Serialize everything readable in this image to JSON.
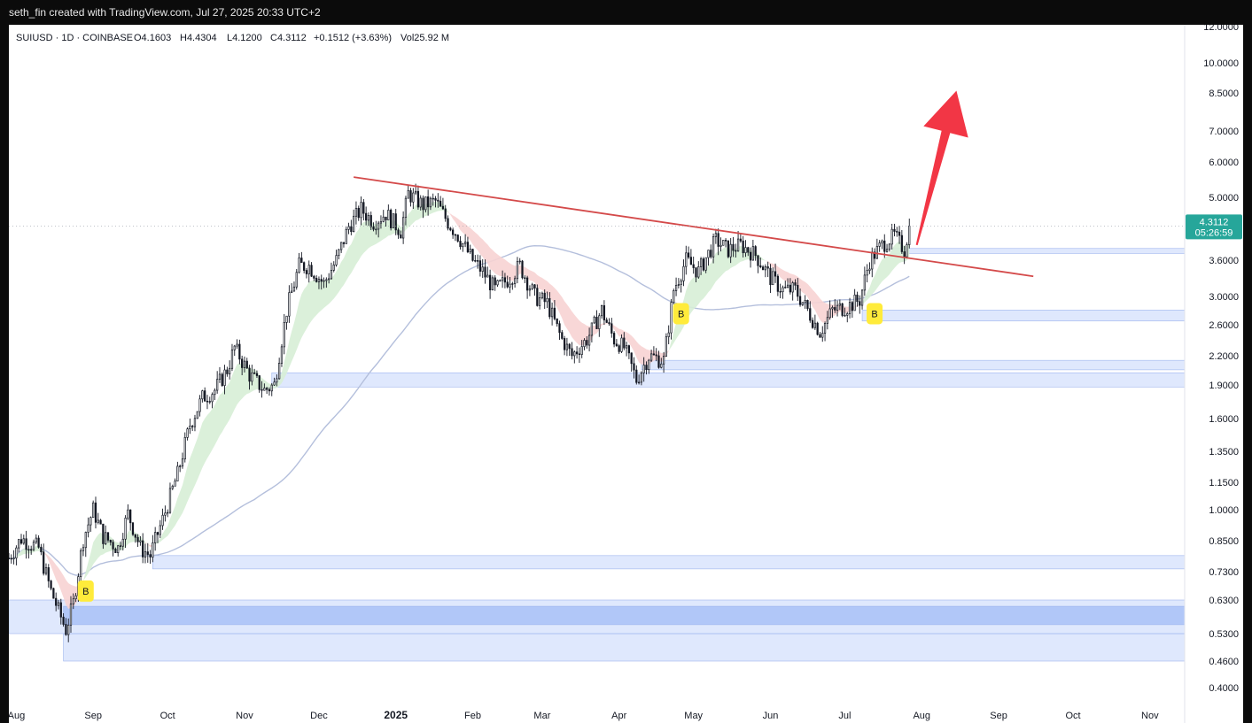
{
  "header": {
    "attribution": "seth_fin created with TradingView.com, Jul 27, 2025 20:33 UTC+2"
  },
  "legend": {
    "symbol": "SUIUSD · 1D · COINBASE",
    "open": "O4.1603",
    "high": "H4.4304",
    "low": "L4.1200",
    "close": "C4.3112",
    "change": "+0.1512 (+3.63%)",
    "volume": "Vol25.92 M"
  },
  "last_price": {
    "value": "4.3112",
    "countdown": "05:26:59"
  },
  "colors": {
    "accent_last": "#26a69a",
    "trendline": "#d44a4a",
    "arrow": "#f23645",
    "zone": "#c9d9fb",
    "zone_strong": "#a9c1f7",
    "cloud_up": "#d7eed6",
    "cloud_down": "#f7d3d3",
    "ma_line": "#b4bfdc",
    "badge": "#ffeb3b"
  },
  "chart_data": {
    "type": "candlestick",
    "symbol": "SUIUSD",
    "interval": "1D",
    "exchange": "COINBASE",
    "y_scale": "log",
    "ylim": [
      0.4,
      12.0
    ],
    "x_range": [
      "2024-07-29",
      "2025-11-15"
    ],
    "y_ticks": [
      12.0,
      10.0,
      8.5,
      7.0,
      6.0,
      5.0,
      4.3,
      3.6,
      3.0,
      2.6,
      2.2,
      1.9,
      1.6,
      1.35,
      1.15,
      1.0,
      0.85,
      0.73,
      0.63,
      0.53,
      0.46,
      0.4
    ],
    "y_tick_labels": [
      "12.0000",
      "10.0000",
      "8.5000",
      "7.0000",
      "6.0000",
      "5.0000",
      "4.3000",
      "3.6000",
      "3.0000",
      "2.6000",
      "2.2000",
      "1.9000",
      "1.6000",
      "1.3500",
      "1.1500",
      "1.0000",
      "0.8500",
      "0.7300",
      "0.6300",
      "0.5300",
      "0.4600",
      "0.4000"
    ],
    "x_ticks": [
      {
        "label": "Aug",
        "date": "2024-08-01"
      },
      {
        "label": "Sep",
        "date": "2024-09-01"
      },
      {
        "label": "Oct",
        "date": "2024-10-01"
      },
      {
        "label": "Nov",
        "date": "2024-11-01"
      },
      {
        "label": "Dec",
        "date": "2024-12-01"
      },
      {
        "label": "2025",
        "date": "2025-01-01",
        "bold": true
      },
      {
        "label": "Feb",
        "date": "2025-02-01"
      },
      {
        "label": "Mar",
        "date": "2025-03-01"
      },
      {
        "label": "Apr",
        "date": "2025-04-01"
      },
      {
        "label": "May",
        "date": "2025-05-01"
      },
      {
        "label": "Jun",
        "date": "2025-06-01"
      },
      {
        "label": "Jul",
        "date": "2025-07-01"
      },
      {
        "label": "Aug",
        "date": "2025-08-01"
      },
      {
        "label": "Sep",
        "date": "2025-09-01"
      },
      {
        "label": "Oct",
        "date": "2025-10-01"
      },
      {
        "label": "Nov",
        "date": "2025-11-01"
      }
    ],
    "price_path": [
      [
        "2024-07-29",
        0.78
      ],
      [
        "2024-08-03",
        0.86
      ],
      [
        "2024-08-10",
        0.82
      ],
      [
        "2024-08-15",
        0.66
      ],
      [
        "2024-08-21",
        0.54
      ],
      [
        "2024-08-24",
        0.62
      ],
      [
        "2024-08-28",
        0.86
      ],
      [
        "2024-09-01",
        1.0
      ],
      [
        "2024-09-05",
        0.87
      ],
      [
        "2024-09-11",
        0.82
      ],
      [
        "2024-09-15",
        0.98
      ],
      [
        "2024-09-20",
        0.82
      ],
      [
        "2024-09-24",
        0.79
      ],
      [
        "2024-09-29",
        0.95
      ],
      [
        "2024-10-05",
        1.2
      ],
      [
        "2024-10-10",
        1.55
      ],
      [
        "2024-10-15",
        1.78
      ],
      [
        "2024-10-20",
        1.85
      ],
      [
        "2024-10-25",
        2.05
      ],
      [
        "2024-10-28",
        2.3
      ],
      [
        "2024-11-03",
        2.0
      ],
      [
        "2024-11-09",
        1.85
      ],
      [
        "2024-11-13",
        1.9
      ],
      [
        "2024-11-18",
        2.8
      ],
      [
        "2024-11-23",
        3.5
      ],
      [
        "2024-11-27",
        3.5
      ],
      [
        "2024-12-03",
        3.2
      ],
      [
        "2024-12-08",
        3.6
      ],
      [
        "2024-12-13",
        4.3
      ],
      [
        "2024-12-18",
        4.7
      ],
      [
        "2024-12-23",
        4.4
      ],
      [
        "2024-12-28",
        4.6
      ],
      [
        "2025-01-03",
        4.2
      ],
      [
        "2025-01-06",
        5.1
      ],
      [
        "2025-01-12",
        4.8
      ],
      [
        "2025-01-17",
        4.9
      ],
      [
        "2025-01-22",
        4.4
      ],
      [
        "2025-01-26",
        4.1
      ],
      [
        "2025-02-01",
        3.6
      ],
      [
        "2025-02-05",
        3.4
      ],
      [
        "2025-02-10",
        3.1
      ],
      [
        "2025-02-16",
        3.3
      ],
      [
        "2025-02-20",
        3.5
      ],
      [
        "2025-02-26",
        3.0
      ],
      [
        "2025-03-03",
        2.9
      ],
      [
        "2025-03-09",
        2.4
      ],
      [
        "2025-03-13",
        2.2
      ],
      [
        "2025-03-19",
        2.4
      ],
      [
        "2025-03-25",
        2.8
      ],
      [
        "2025-03-30",
        2.4
      ],
      [
        "2025-04-03",
        2.3
      ],
      [
        "2025-04-08",
        1.95
      ],
      [
        "2025-04-13",
        2.2
      ],
      [
        "2025-04-19",
        2.15
      ],
      [
        "2025-04-23",
        3.1
      ],
      [
        "2025-04-28",
        3.6
      ],
      [
        "2025-05-03",
        3.4
      ],
      [
        "2025-05-10",
        4.0
      ],
      [
        "2025-05-15",
        3.8
      ],
      [
        "2025-05-20",
        3.9
      ],
      [
        "2025-05-26",
        3.7
      ],
      [
        "2025-06-01",
        3.3
      ],
      [
        "2025-06-06",
        3.1
      ],
      [
        "2025-06-11",
        3.1
      ],
      [
        "2025-06-16",
        2.8
      ],
      [
        "2025-06-21",
        2.5
      ],
      [
        "2025-06-26",
        2.8
      ],
      [
        "2025-07-02",
        2.85
      ],
      [
        "2025-07-07",
        2.95
      ],
      [
        "2025-07-11",
        3.6
      ],
      [
        "2025-07-16",
        3.9
      ],
      [
        "2025-07-21",
        4.1
      ],
      [
        "2025-07-25",
        3.8
      ],
      [
        "2025-07-27",
        4.3112
      ]
    ],
    "trendline": [
      [
        "2024-12-15",
        5.55
      ],
      [
        "2025-09-15",
        3.32
      ]
    ],
    "arrow": [
      [
        "2025-07-30",
        3.9
      ],
      [
        "2025-08-15",
        8.6
      ]
    ],
    "demand_zones": [
      {
        "from": "2024-08-20",
        "low": 0.46,
        "high": 0.53
      },
      {
        "from": "2024-07-29",
        "low": 0.53,
        "high": 0.63
      },
      {
        "from": "2024-08-20",
        "low": 0.555,
        "high": 0.61,
        "strong": true
      },
      {
        "from": "2024-09-25",
        "low": 0.74,
        "high": 0.79
      },
      {
        "from": "2024-11-12",
        "low": 1.88,
        "high": 2.02
      },
      {
        "from": "2025-04-10",
        "low": 2.05,
        "high": 2.15
      },
      {
        "from": "2025-07-08",
        "low": 2.65,
        "high": 2.8
      },
      {
        "from": "2025-07-20",
        "low": 3.73,
        "high": 3.83
      }
    ],
    "buy_signals": [
      {
        "label": "B",
        "date": "2024-08-29",
        "price": 0.66
      },
      {
        "label": "B",
        "date": "2025-04-26",
        "price": 2.75
      },
      {
        "label": "B",
        "date": "2025-07-13",
        "price": 2.75
      }
    ],
    "last": {
      "date": "2025-07-27",
      "value": 4.3112
    }
  }
}
